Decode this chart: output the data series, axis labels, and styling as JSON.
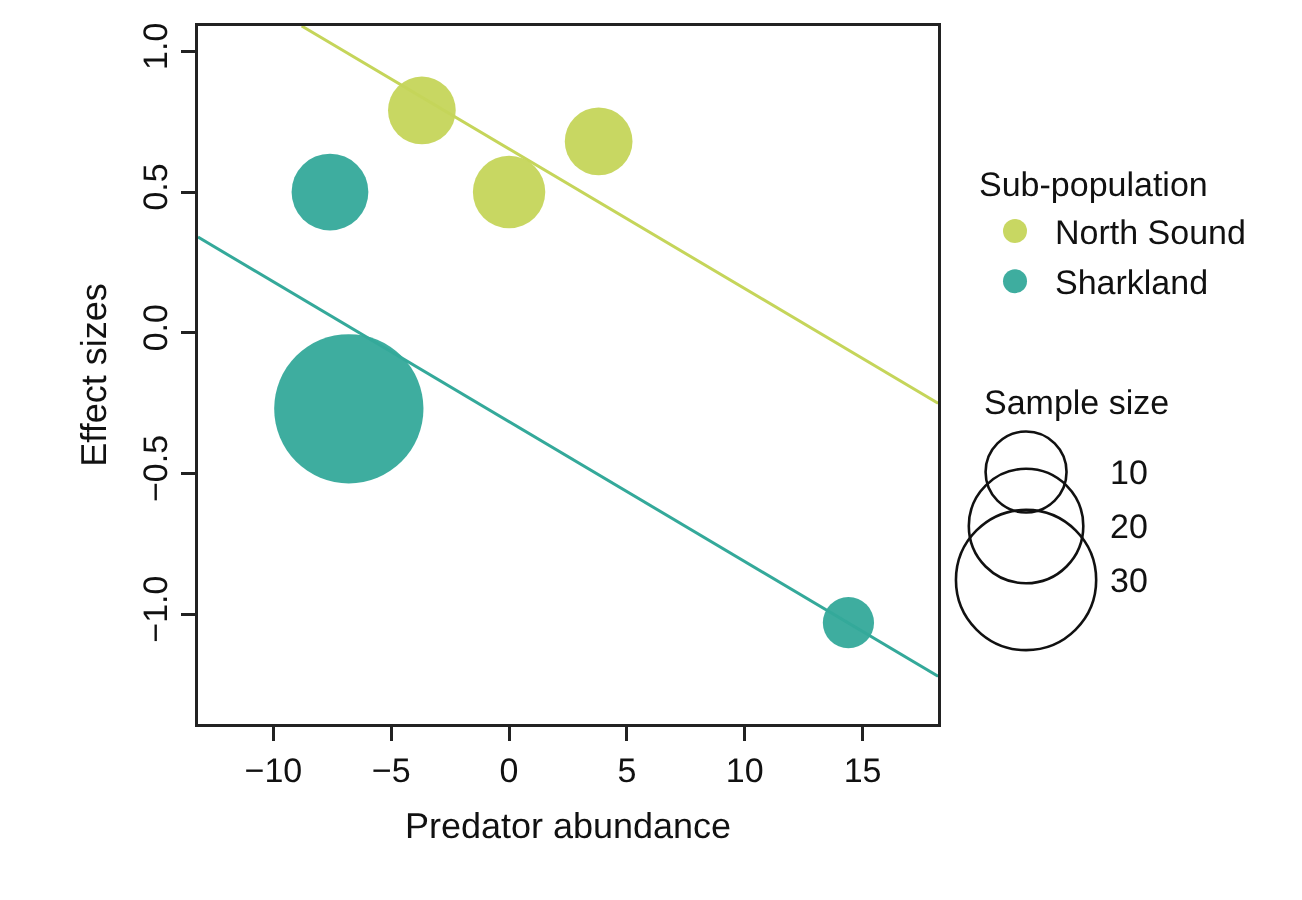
{
  "chart_data": {
    "type": "bubble",
    "xlabel": "Predator abundance",
    "ylabel": "Effect sizes",
    "legend_title": "Sub-population",
    "legend": "right",
    "grid": false,
    "xlim": [
      -13.2,
      18.2
    ],
    "xticks": [
      {
        "value": -10,
        "label": "−10"
      },
      {
        "value": -5,
        "label": "−5"
      },
      0,
      5,
      10,
      15
    ],
    "ylim": [
      -1.39,
      1.09
    ],
    "yticks": [
      {
        "value": -1,
        "label": "−1.0"
      },
      {
        "value": -0.5,
        "label": "−0.5"
      },
      {
        "value": 0,
        "label": "0.0"
      },
      {
        "value": 0.5,
        "label": "0.5"
      },
      {
        "value": 1,
        "label": "1.0"
      }
    ],
    "size_legend": [
      10,
      20,
      30
    ],
    "annotations": [
      "Sample size"
    ],
    "series": [
      {
        "name": "North Sound",
        "color": "#c5d55a",
        "x": [
          -3.7,
          0,
          3.8
        ],
        "values": [
          0.79,
          0.5,
          0.68
        ],
        "sizes": [
          7,
          8,
          7
        ]
      },
      {
        "name": "Sharkland",
        "color": "#34a99a",
        "x": [
          -7.6,
          -6.8,
          14.4
        ],
        "values": [
          0.5,
          -0.27,
          -1.03
        ],
        "sizes": [
          9,
          34,
          4
        ]
      },
      {
        "type": "line",
        "color": "#c5d55a",
        "x": [
          -8.8,
          18.2
        ],
        "values": [
          1.09,
          -0.25
        ]
      },
      {
        "type": "line",
        "color": "#34a99a",
        "x": [
          -13.2,
          18.2
        ],
        "values": [
          0.34,
          -1.22
        ]
      }
    ]
  }
}
